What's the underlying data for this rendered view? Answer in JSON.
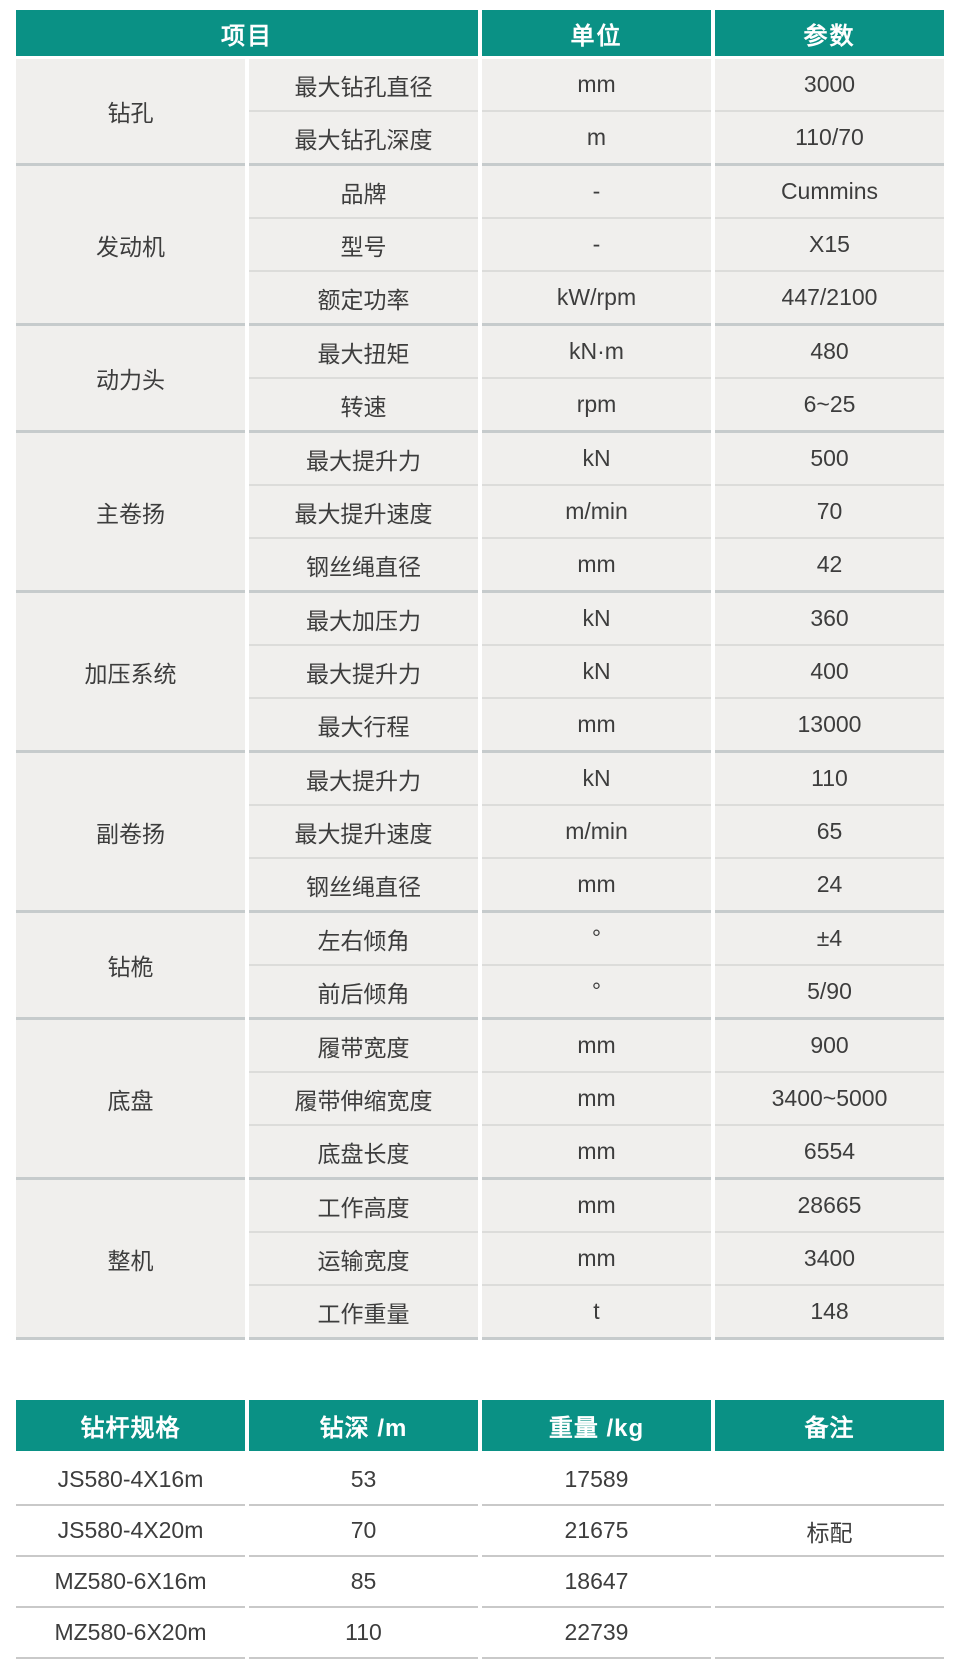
{
  "colors": {
    "header_teal": "#0a9185",
    "header_text": "#ffffff",
    "cell_bg": "#f0efed",
    "row_line": "#dcdcda",
    "group_line": "#c6cbcc",
    "pipe_row_line": "#c9c9c9",
    "text": "#3d3d3d"
  },
  "spec_table": {
    "headers": {
      "item": "项目",
      "unit": "单位",
      "param": "参数"
    },
    "groups": [
      {
        "name": "钻孔",
        "rows": [
          [
            "最大钻孔直径",
            "mm",
            "3000"
          ],
          [
            "最大钻孔深度",
            "m",
            "110/70"
          ]
        ]
      },
      {
        "name": "发动机",
        "rows": [
          [
            "品牌",
            "-",
            "Cummins"
          ],
          [
            "型号",
            "-",
            "X15"
          ],
          [
            "额定功率",
            "kW/rpm",
            "447/2100"
          ]
        ]
      },
      {
        "name": "动力头",
        "rows": [
          [
            "最大扭矩",
            "kN·m",
            "480"
          ],
          [
            "转速",
            "rpm",
            "6~25"
          ]
        ]
      },
      {
        "name": "主卷扬",
        "rows": [
          [
            "最大提升力",
            "kN",
            "500"
          ],
          [
            "最大提升速度",
            "m/min",
            "70"
          ],
          [
            "钢丝绳直径",
            "mm",
            "42"
          ]
        ]
      },
      {
        "name": "加压系统",
        "rows": [
          [
            "最大加压力",
            "kN",
            "360"
          ],
          [
            "最大提升力",
            "kN",
            "400"
          ],
          [
            "最大行程",
            "mm",
            "13000"
          ]
        ]
      },
      {
        "name": "副卷扬",
        "rows": [
          [
            "最大提升力",
            "kN",
            "110"
          ],
          [
            "最大提升速度",
            "m/min",
            "65"
          ],
          [
            "钢丝绳直径",
            "mm",
            "24"
          ]
        ]
      },
      {
        "name": "钻桅",
        "rows": [
          [
            "左右倾角",
            "°",
            "±4"
          ],
          [
            "前后倾角",
            "°",
            "5/90"
          ]
        ]
      },
      {
        "name": "底盘",
        "rows": [
          [
            "履带宽度",
            "mm",
            "900"
          ],
          [
            "履带伸缩宽度",
            "mm",
            "3400~5000"
          ],
          [
            "底盘长度",
            "mm",
            "6554"
          ]
        ]
      },
      {
        "name": "整机",
        "rows": [
          [
            "工作高度",
            "mm",
            "28665"
          ],
          [
            "运输宽度",
            "mm",
            "3400"
          ],
          [
            "工作重量",
            "t",
            "148"
          ]
        ]
      }
    ]
  },
  "pipe_table": {
    "headers": [
      "钻杆规格",
      "钻深 /m",
      "重量 /kg",
      "备注"
    ],
    "rows": [
      [
        "JS580-4X16m",
        "53",
        "17589",
        ""
      ],
      [
        "JS580-4X20m",
        "70",
        "21675",
        "标配"
      ],
      [
        "MZ580-6X16m",
        "85",
        "18647",
        ""
      ],
      [
        "MZ580-6X20m",
        "110",
        "22739",
        ""
      ]
    ]
  }
}
